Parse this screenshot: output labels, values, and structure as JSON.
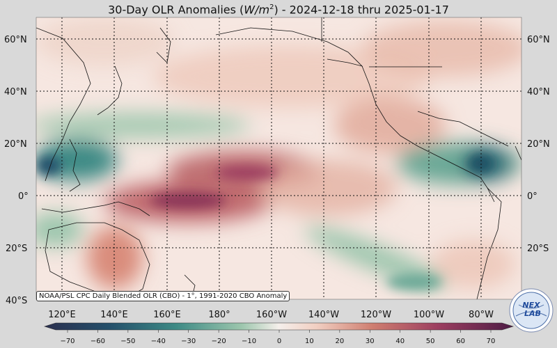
{
  "header": {
    "title_prefix": "30-Day OLR Anomalies (",
    "title_unit": "W/m",
    "title_sup": "2",
    "title_suffix": ") - 2024-12-18 thru 2025-01-17"
  },
  "map": {
    "lat_labels": [
      "60°N",
      "40°N",
      "20°N",
      "0°",
      "20°S",
      "40°S"
    ],
    "lon_labels": [
      "120°E",
      "140°E",
      "160°E",
      "180°",
      "160°W",
      "140°W",
      "120°W",
      "100°W",
      "80°W"
    ],
    "lat_range": [
      -40,
      68
    ],
    "lon_range": [
      107,
      293
    ],
    "anomaly_features": [
      {
        "lon": 115,
        "lat": 11,
        "value": -50
      },
      {
        "lon": 135,
        "lat": 12,
        "value": -30
      },
      {
        "lon": 170,
        "lat": 0,
        "value": 45
      },
      {
        "lon": 190,
        "lat": 7,
        "value": 40
      },
      {
        "lon": 255,
        "lat": 12,
        "value": -35
      },
      {
        "lon": 280,
        "lat": 11,
        "value": -50
      },
      {
        "lon": 145,
        "lat": -24,
        "value": 35
      },
      {
        "lon": 255,
        "lat": -33,
        "value": -35
      },
      {
        "lon": 200,
        "lat": 22,
        "value": -20
      },
      {
        "lon": 125,
        "lat": -12,
        "value": -25
      }
    ]
  },
  "colorbar": {
    "ticks": [
      "−70",
      "−60",
      "−50",
      "−40",
      "−30",
      "−20",
      "−10",
      "0",
      "10",
      "20",
      "30",
      "40",
      "50",
      "60",
      "70"
    ],
    "min": -75,
    "max": 75,
    "colors": [
      "#2a2f4f",
      "#24506b",
      "#1f6f78",
      "#3d8a85",
      "#6aa896",
      "#9cc6ad",
      "#cbe1cf",
      "#f5efeb",
      "#f1cfc2",
      "#e2a795",
      "#cf7e70",
      "#b95a63",
      "#9c3e60",
      "#78275a",
      "#4e1c45"
    ]
  },
  "credit": "NOAA/PSL CPC Daily Blended OLR (CBO) - 1°, 1991-2020 CBO Anomaly",
  "logo": {
    "text": "NEX",
    "text2": "LAB"
  }
}
